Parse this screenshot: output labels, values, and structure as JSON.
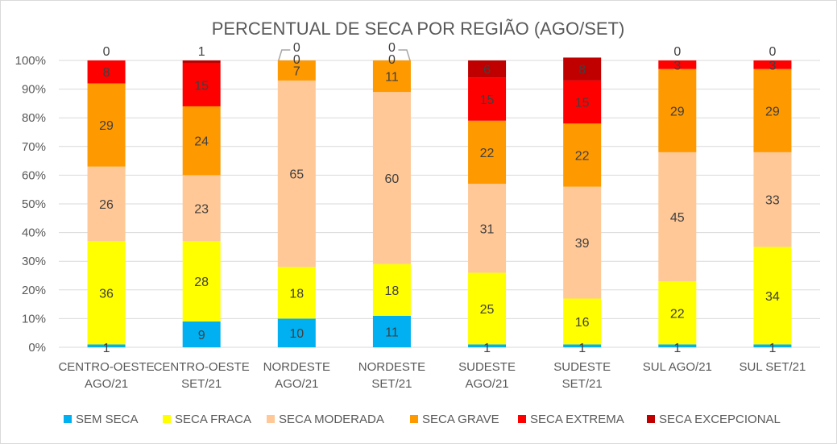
{
  "chart_data": {
    "type": "bar",
    "stacked": "percent",
    "title": "PERCENTUAL DE SECA POR REGIÃO (AGO/SET)",
    "xlabel": "",
    "ylabel": "",
    "ylim": [
      0,
      100
    ],
    "yticks": [
      "0%",
      "10%",
      "20%",
      "30%",
      "40%",
      "50%",
      "60%",
      "70%",
      "80%",
      "90%",
      "100%"
    ],
    "grid": true,
    "legend_position": "bottom",
    "categories": [
      [
        "CENTRO-OESTE",
        "AGO/21"
      ],
      [
        "CENTRO-OESTE",
        "SET/21"
      ],
      [
        "NORDESTE",
        "AGO/21"
      ],
      [
        "NORDESTE",
        "SET/21"
      ],
      [
        "SUDESTE",
        "AGO/21"
      ],
      [
        "SUDESTE",
        "SET/21"
      ],
      [
        "SUL AGO/21"
      ],
      [
        "SUL SET/21"
      ]
    ],
    "series": [
      {
        "name": "SEM SECA",
        "color": "#00b0f0",
        "values": [
          1,
          9,
          10,
          11,
          1,
          1,
          1,
          1
        ]
      },
      {
        "name": "SECA FRACA",
        "color": "#ffff00",
        "values": [
          36,
          28,
          18,
          18,
          25,
          16,
          22,
          34
        ]
      },
      {
        "name": "SECA MODERADA",
        "color": "#ffc896",
        "values": [
          26,
          23,
          65,
          60,
          31,
          39,
          45,
          33
        ]
      },
      {
        "name": "SECA GRAVE",
        "color": "#ff9900",
        "values": [
          29,
          24,
          7,
          11,
          22,
          22,
          29,
          29
        ]
      },
      {
        "name": "SECA EXTREMA",
        "color": "#ff0000",
        "values": [
          8,
          15,
          0,
          0,
          15,
          15,
          3,
          3
        ]
      },
      {
        "name": "SECA EXCEPCIONAL",
        "color": "#c00000",
        "values": [
          0,
          1,
          0,
          0,
          6,
          8,
          0,
          0
        ]
      }
    ]
  }
}
